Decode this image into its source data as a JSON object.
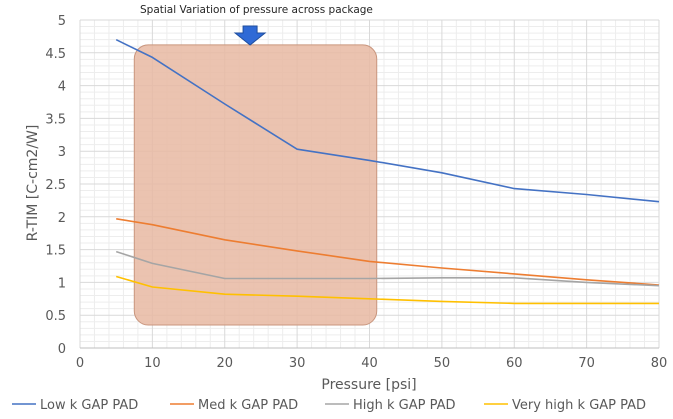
{
  "chart_data": {
    "type": "line",
    "title": "",
    "xlabel": "Pressure [psi]",
    "ylabel": "R-TIM [C-cm2/W]",
    "xlim": [
      0,
      80
    ],
    "ylim": [
      0,
      5
    ],
    "x_ticks": [
      "0",
      "10",
      "20",
      "30",
      "40",
      "50",
      "60",
      "70",
      "80"
    ],
    "y_ticks": [
      "0",
      "0.5",
      "1",
      "1.5",
      "2",
      "2.5",
      "3",
      "3.5",
      "4",
      "4.5",
      "5"
    ],
    "grid": true,
    "legend_position": "bottom",
    "annotation": {
      "text": "Spatial  Variation of pressure across package",
      "arrow_x": 23.5,
      "region": {
        "x_from": 7.5,
        "x_to": 41,
        "y_from": 0.35,
        "y_to": 4.62,
        "color": "#e8b9a2"
      }
    },
    "series": [
      {
        "name": "Low k  GAP PAD",
        "color": "#4472c4",
        "x": [
          5,
          10,
          20,
          30,
          40,
          50,
          60,
          70,
          80
        ],
        "y": [
          4.7,
          4.43,
          3.72,
          3.03,
          2.86,
          2.67,
          2.43,
          2.34,
          2.23
        ]
      },
      {
        "name": "Med k  GAP PAD",
        "color": "#ed7d31",
        "x": [
          5,
          10,
          20,
          30,
          40,
          50,
          60,
          70,
          80
        ],
        "y": [
          1.97,
          1.88,
          1.65,
          1.48,
          1.32,
          1.22,
          1.13,
          1.04,
          0.96
        ]
      },
      {
        "name": "High k  GAP PAD",
        "color": "#a5a5a5",
        "x": [
          5,
          10,
          20,
          30,
          40,
          50,
          60,
          70,
          80
        ],
        "y": [
          1.47,
          1.29,
          1.06,
          1.06,
          1.06,
          1.07,
          1.07,
          1.0,
          0.95
        ]
      },
      {
        "name": "Very high k  GAP PAD",
        "color": "#ffc000",
        "x": [
          5,
          10,
          20,
          30,
          40,
          50,
          60,
          70,
          80
        ],
        "y": [
          1.09,
          0.93,
          0.82,
          0.79,
          0.75,
          0.71,
          0.68,
          0.68,
          0.68
        ]
      }
    ]
  }
}
